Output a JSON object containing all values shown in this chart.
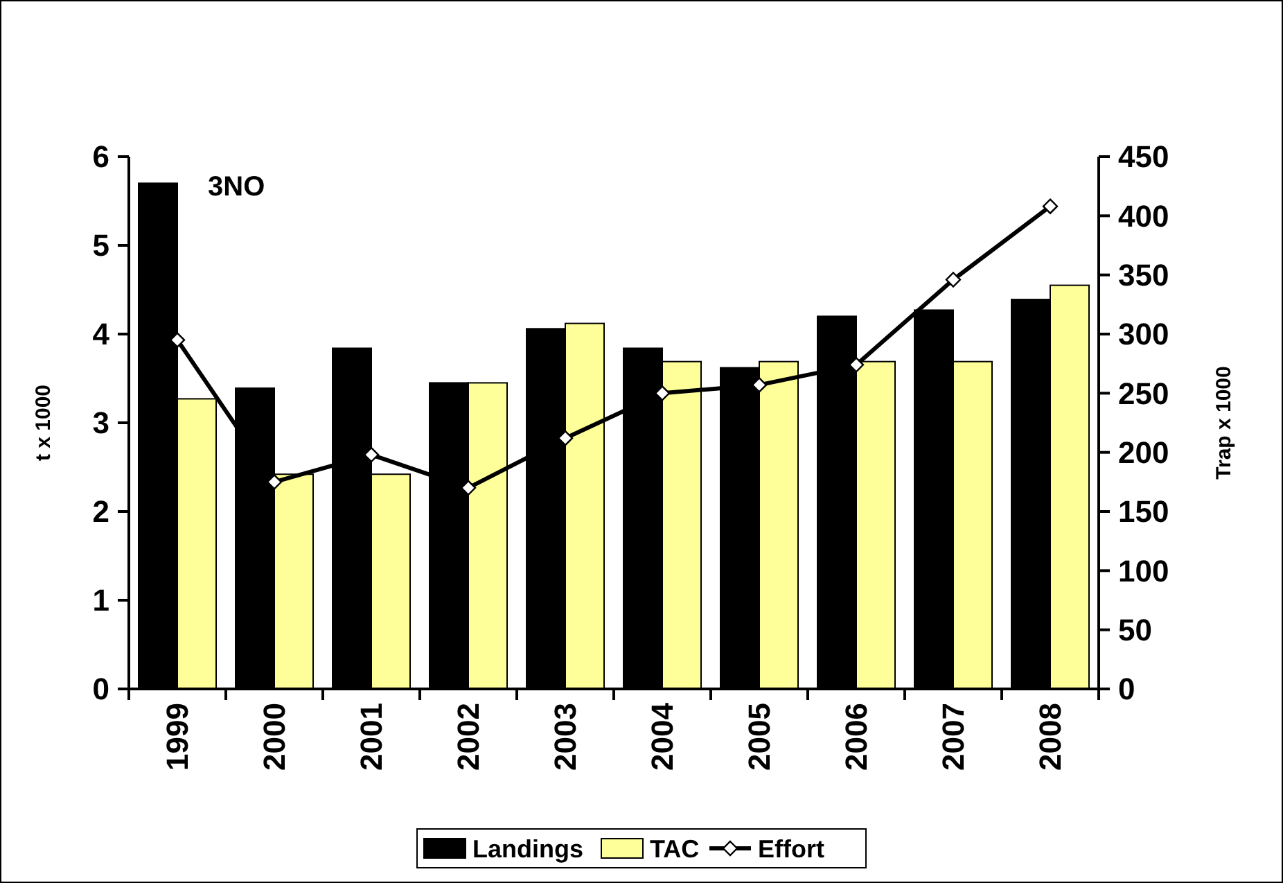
{
  "chart_data": {
    "type": "bar",
    "categories": [
      "1999",
      "2000",
      "2001",
      "2002",
      "2003",
      "2004",
      "2005",
      "2006",
      "2007",
      "2008"
    ],
    "series": [
      {
        "name": "Landings",
        "color": "#000000",
        "values": [
          5.7,
          3.39,
          3.84,
          3.45,
          4.06,
          3.84,
          3.62,
          4.2,
          4.27,
          4.39
        ]
      },
      {
        "name": "TAC",
        "color": "#ffff99",
        "values": [
          3.27,
          2.42,
          2.42,
          3.45,
          4.12,
          3.69,
          3.69,
          3.69,
          3.69,
          4.55
        ]
      },
      {
        "name": "Effort",
        "type": "line",
        "axis": "y2",
        "color": "#000000",
        "marker": "diamond",
        "values": [
          295,
          175,
          198,
          170,
          212,
          250,
          257,
          274,
          346,
          408
        ]
      }
    ],
    "ylabel": "t x 1000",
    "y2label": "Trap x 1000",
    "ylim": [
      0,
      6
    ],
    "yticks": [
      0,
      1,
      2,
      3,
      4,
      5,
      6
    ],
    "y2lim": [
      0,
      450
    ],
    "y2ticks": [
      0,
      50,
      100,
      150,
      200,
      250,
      300,
      350,
      400,
      450
    ],
    "legend": "bottom",
    "annotations": [
      "3NO"
    ]
  }
}
